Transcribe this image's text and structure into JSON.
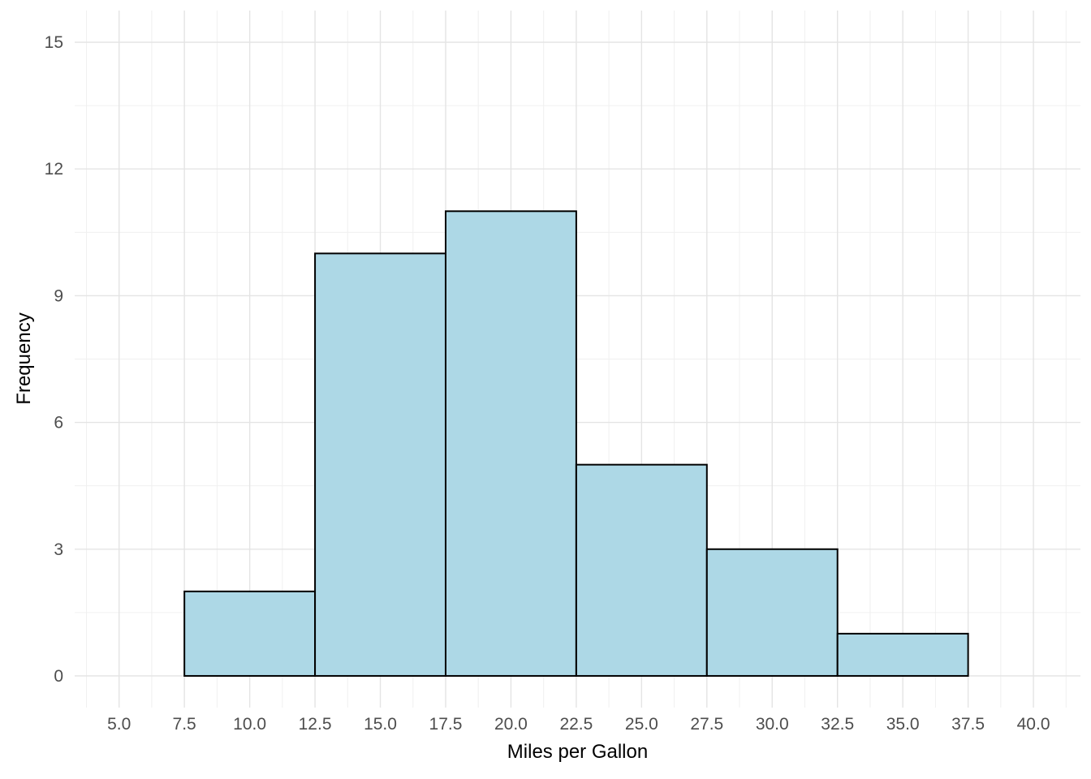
{
  "chart_data": {
    "type": "bar",
    "subtype": "histogram",
    "title": "",
    "xlabel": "Miles per Gallon",
    "ylabel": "Frequency",
    "bin_width": 5,
    "bins": [
      {
        "range": [
          7.5,
          12.5
        ],
        "count": 2
      },
      {
        "range": [
          12.5,
          17.5
        ],
        "count": 10
      },
      {
        "range": [
          17.5,
          22.5
        ],
        "count": 11
      },
      {
        "range": [
          22.5,
          27.5
        ],
        "count": 5
      },
      {
        "range": [
          27.5,
          32.5
        ],
        "count": 3
      },
      {
        "range": [
          32.5,
          37.5
        ],
        "count": 1
      }
    ],
    "x_ticks": {
      "values": [
        5,
        7.5,
        10,
        12.5,
        15,
        17.5,
        20,
        22.5,
        25,
        27.5,
        30,
        32.5,
        35,
        37.5,
        40
      ],
      "labels": [
        "5.0",
        "7.5",
        "10.0",
        "12.5",
        "15.0",
        "17.5",
        "20.0",
        "22.5",
        "25.0",
        "27.5",
        "30.0",
        "32.5",
        "35.0",
        "37.5",
        "40.0"
      ]
    },
    "y_ticks": {
      "values": [
        0,
        3,
        6,
        9,
        12,
        15
      ],
      "labels": [
        "0",
        "3",
        "6",
        "9",
        "12",
        "15"
      ]
    },
    "x_minor_ticks": [
      3.75,
      6.25,
      8.75,
      11.25,
      13.75,
      16.25,
      18.75,
      21.25,
      23.75,
      26.25,
      28.75,
      31.25,
      33.75,
      36.25,
      38.75,
      41.25
    ],
    "y_minor_ticks": [
      1.5,
      4.5,
      7.5,
      10.5,
      13.5
    ],
    "xlim": [
      3.3,
      41.8
    ],
    "ylim": [
      -0.75,
      15.75
    ],
    "grid": true,
    "legend": "none",
    "colors": {
      "background": "#ffffff",
      "bar_fill": "#ADD8E6",
      "bar_stroke": "#000000",
      "grid_major": "#e4e4e4",
      "grid_minor": "#f0f0f0",
      "tick_label": "#4d4d4d",
      "axis_title": "#000000"
    }
  }
}
